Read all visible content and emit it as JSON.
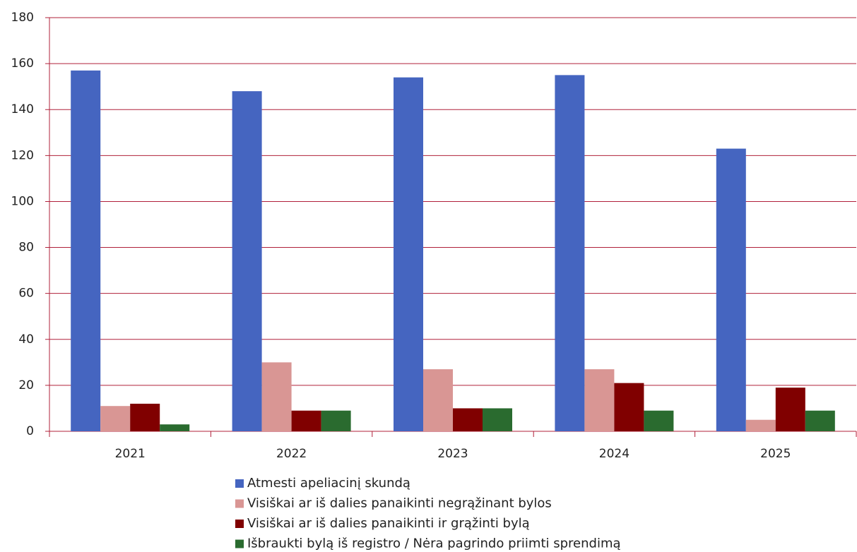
{
  "chart_data": {
    "type": "bar",
    "categories": [
      "2021",
      "2022",
      "2023",
      "2024",
      "2025"
    ],
    "series": [
      {
        "name": "Atmesti apeliacinį skundą",
        "color": "#4565c0",
        "values": [
          157,
          148,
          154,
          155,
          123
        ]
      },
      {
        "name": "Visiškai ar iš dalies panaikinti negrąžinant bylos",
        "color": "#d99694",
        "values": [
          11,
          30,
          27,
          27,
          5
        ]
      },
      {
        "name": "Visiškai ar iš dalies panaikinti ir grąžinti bylą",
        "color": "#800000",
        "values": [
          12,
          9,
          10,
          21,
          19
        ]
      },
      {
        "name": "Išbraukti bylą iš registro / Nėra pagrindo priimti sprendimą",
        "color": "#2a6b2f",
        "values": [
          3,
          9,
          10,
          9,
          9
        ]
      }
    ],
    "ylim": [
      0,
      180
    ],
    "yticks": [
      0,
      20,
      40,
      60,
      80,
      100,
      120,
      140,
      160,
      180
    ],
    "grid": true
  }
}
